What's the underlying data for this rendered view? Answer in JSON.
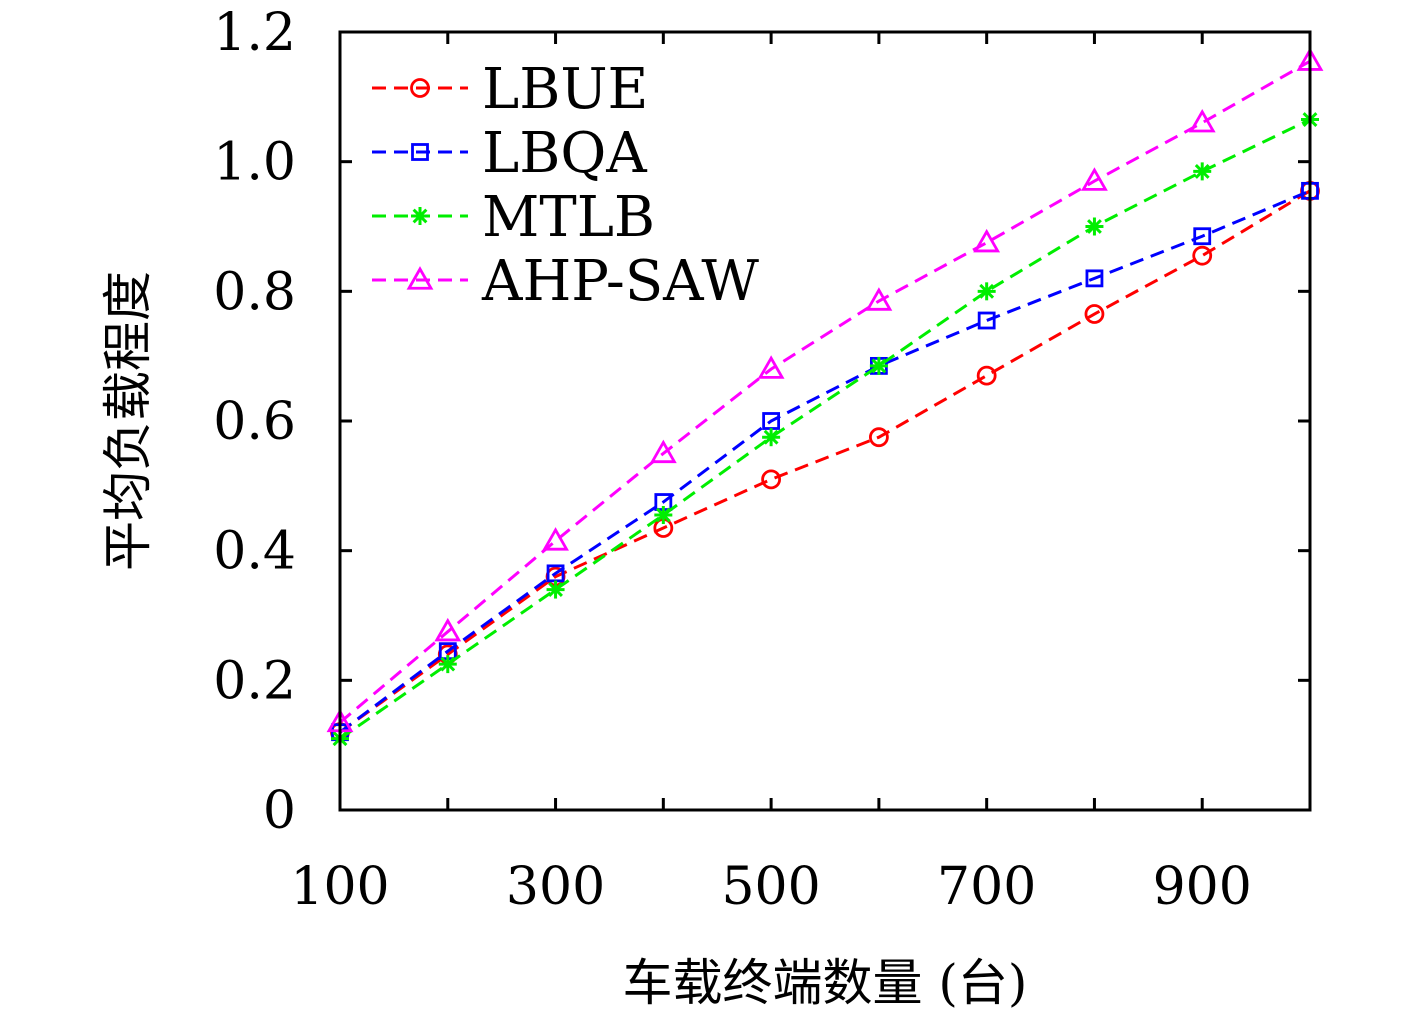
{
  "chart_data": {
    "type": "line",
    "xlabel": "车载终端数量 (台)",
    "ylabel": "平均负载程度",
    "x": [
      100,
      200,
      300,
      400,
      500,
      600,
      700,
      800,
      900,
      1000
    ],
    "x_tick_values": [
      100,
      300,
      500,
      700,
      900
    ],
    "x_tick_labels": [
      "100",
      "300",
      "500",
      "700",
      "900"
    ],
    "xlim": [
      100,
      1000
    ],
    "y_tick_values": [
      0,
      0.2,
      0.4,
      0.6,
      0.8,
      1.0,
      1.2
    ],
    "y_tick_labels": [
      "0",
      "0.2",
      "0.4",
      "0.6",
      "0.8",
      "1.0",
      "1.2"
    ],
    "ylim": [
      0,
      1.2
    ],
    "grid": false,
    "legend_position": "top-left",
    "series": [
      {
        "name": "LBUE",
        "color": "#ff0000",
        "marker": "circle",
        "values": [
          0.12,
          0.24,
          0.36,
          0.435,
          0.51,
          0.575,
          0.67,
          0.765,
          0.855,
          0.955
        ]
      },
      {
        "name": "LBQA",
        "color": "#0000ff",
        "marker": "square",
        "values": [
          0.12,
          0.245,
          0.365,
          0.475,
          0.6,
          0.685,
          0.755,
          0.82,
          0.885,
          0.955
        ]
      },
      {
        "name": "MTLB",
        "color": "#00ee00",
        "marker": "asterisk",
        "values": [
          0.11,
          0.225,
          0.34,
          0.455,
          0.575,
          0.685,
          0.8,
          0.9,
          0.985,
          1.065
        ]
      },
      {
        "name": "AHP-SAW",
        "color": "#ff00ff",
        "marker": "triangle",
        "values": [
          0.135,
          0.275,
          0.415,
          0.55,
          0.68,
          0.785,
          0.875,
          0.97,
          1.06,
          1.155
        ]
      }
    ]
  }
}
